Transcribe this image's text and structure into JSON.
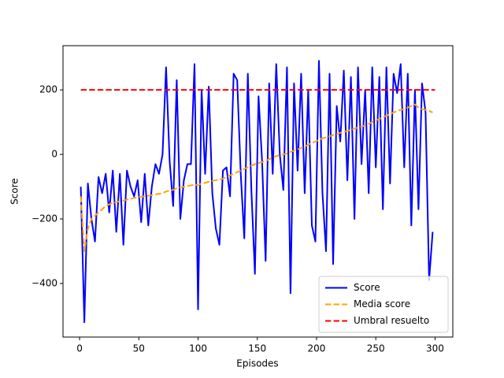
{
  "chart_data": {
    "type": "line",
    "xlabel": "Episodes",
    "ylabel": "Score",
    "x": [
      1,
      4,
      7,
      10,
      13,
      16,
      19,
      22,
      25,
      28,
      31,
      34,
      37,
      40,
      43,
      46,
      49,
      52,
      55,
      58,
      61,
      64,
      67,
      70,
      73,
      76,
      79,
      82,
      85,
      88,
      91,
      94,
      97,
      100,
      103,
      106,
      109,
      112,
      115,
      118,
      121,
      124,
      127,
      130,
      133,
      136,
      139,
      142,
      145,
      148,
      151,
      154,
      157,
      160,
      163,
      166,
      169,
      172,
      175,
      178,
      181,
      184,
      187,
      190,
      193,
      196,
      199,
      202,
      205,
      208,
      211,
      214,
      217,
      220,
      223,
      226,
      229,
      232,
      235,
      238,
      241,
      244,
      247,
      250,
      253,
      256,
      259,
      262,
      265,
      268,
      271,
      274,
      277,
      280,
      283,
      286,
      289,
      292,
      295,
      298
    ],
    "series": [
      {
        "name": "Score",
        "color": "#0000ff",
        "linestyle": "solid",
        "values": [
          -100,
          -520,
          -90,
          -200,
          -270,
          -70,
          -120,
          -60,
          -180,
          -50,
          -240,
          -60,
          -280,
          -50,
          -100,
          -130,
          -80,
          -210,
          -60,
          -220,
          -100,
          -30,
          -60,
          0,
          270,
          -20,
          -160,
          230,
          -200,
          -80,
          -30,
          -30,
          280,
          -480,
          200,
          -60,
          210,
          -120,
          -230,
          -280,
          -50,
          -40,
          -130,
          250,
          230,
          -60,
          -260,
          250,
          -110,
          -370,
          180,
          -20,
          -330,
          220,
          -60,
          280,
          0,
          -110,
          270,
          -430,
          220,
          -50,
          250,
          -120,
          200,
          -220,
          -270,
          290,
          -120,
          -300,
          250,
          -340,
          150,
          40,
          260,
          -80,
          240,
          -200,
          270,
          -30,
          200,
          -120,
          270,
          -40,
          240,
          -170,
          270,
          -90,
          250,
          190,
          280,
          -40,
          250,
          -220,
          200,
          -170,
          220,
          130,
          -390,
          -240
        ]
      },
      {
        "name": "Media score",
        "color": "#ffa500",
        "linestyle": "dashed",
        "values": [
          -130,
          -300,
          -230,
          -200,
          -190,
          -180,
          -170,
          -160,
          -155,
          -150,
          -148,
          -145,
          -143,
          -140,
          -138,
          -135,
          -133,
          -131,
          -130,
          -128,
          -126,
          -124,
          -122,
          -120,
          -115,
          -112,
          -110,
          -105,
          -102,
          -100,
          -98,
          -96,
          -94,
          -95,
          -90,
          -88,
          -85,
          -82,
          -80,
          -78,
          -75,
          -70,
          -65,
          -60,
          -55,
          -50,
          -45,
          -40,
          -35,
          -30,
          -27,
          -24,
          -20,
          -15,
          -10,
          -5,
          -3,
          0,
          3,
          8,
          12,
          16,
          20,
          25,
          30,
          35,
          40,
          45,
          50,
          53,
          56,
          60,
          63,
          67,
          70,
          73,
          76,
          80,
          83,
          86,
          90,
          95,
          100,
          105,
          110,
          115,
          120,
          125,
          130,
          135,
          138,
          140,
          145,
          150,
          155,
          145,
          140,
          138,
          135,
          130
        ]
      },
      {
        "name": "Umbral resuelto",
        "color": "#ff0000",
        "linestyle": "dashed",
        "x": [
          1,
          300
        ],
        "values": [
          200,
          200
        ]
      }
    ],
    "xlim": [
      -14,
      315
    ],
    "ylim": [
      -566,
      337
    ],
    "xticks": [
      0,
      50,
      100,
      150,
      200,
      250,
      300
    ],
    "yticks": [
      {
        "value": -400,
        "label": "−400"
      },
      {
        "value": -200,
        "label": "−200"
      },
      0,
      200
    ],
    "legend": "lower right"
  }
}
